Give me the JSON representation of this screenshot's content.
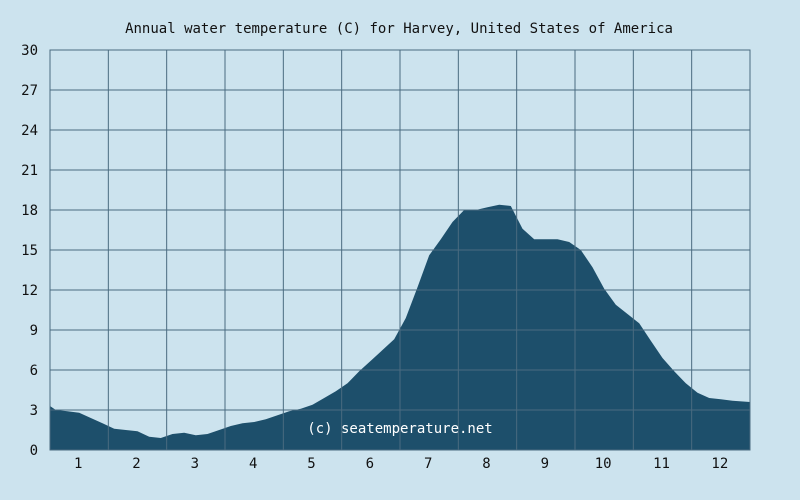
{
  "chart_data": {
    "type": "area",
    "title": "Annual water temperature (C) for Harvey, United States of America",
    "credit": "(c) seatemperature.net",
    "xlabel": "",
    "ylabel": "",
    "xlim": [
      0.5,
      12.5
    ],
    "ylim": [
      0,
      30
    ],
    "yticks": [
      "0",
      "3",
      "6",
      "9",
      "12",
      "15",
      "18",
      "21",
      "24",
      "27",
      "30"
    ],
    "xticks": [
      "1",
      "2",
      "3",
      "4",
      "5",
      "6",
      "7",
      "8",
      "9",
      "10",
      "11",
      "12"
    ],
    "grid": true,
    "series": [
      {
        "x": [
          0.5,
          0.6,
          0.8,
          1.0,
          1.2,
          1.4,
          1.6,
          1.8,
          2.0,
          2.2,
          2.4,
          2.6,
          2.8,
          3.0,
          3.2,
          3.4,
          3.6,
          3.8,
          4.0,
          4.2,
          4.4,
          4.6,
          4.8,
          5.0,
          5.2,
          5.4,
          5.6,
          5.8,
          6.0,
          6.2,
          6.4,
          6.6,
          6.8,
          7.0,
          7.2,
          7.4,
          7.6,
          7.8,
          8.0,
          8.2,
          8.4,
          8.6,
          8.8,
          9.0,
          9.2,
          9.4,
          9.6,
          9.8,
          10.0,
          10.2,
          10.4,
          10.6,
          10.8,
          11.0,
          11.2,
          11.4,
          11.6,
          11.8,
          12.0,
          12.2,
          12.5
        ],
        "values": [
          3.3,
          3.0,
          2.9,
          2.8,
          2.4,
          2.0,
          1.6,
          1.5,
          1.4,
          1.0,
          0.9,
          1.2,
          1.3,
          1.1,
          1.2,
          1.5,
          1.8,
          2.0,
          2.1,
          2.3,
          2.6,
          2.9,
          3.1,
          3.4,
          3.9,
          4.4,
          5.0,
          5.9,
          6.7,
          7.5,
          8.3,
          9.9,
          12.2,
          14.6,
          15.8,
          17.1,
          18.0,
          18.0,
          18.2,
          18.4,
          18.3,
          16.6,
          15.8,
          15.8,
          15.8,
          15.6,
          15.0,
          13.7,
          12.1,
          10.9,
          10.2,
          9.5,
          8.2,
          6.9,
          5.9,
          5.0,
          4.3,
          3.9,
          3.8,
          3.7,
          3.6
        ]
      }
    ],
    "colors": {
      "area": "#1d4f6b",
      "background": "#cce3ee",
      "grid": "#4a6b80"
    }
  }
}
